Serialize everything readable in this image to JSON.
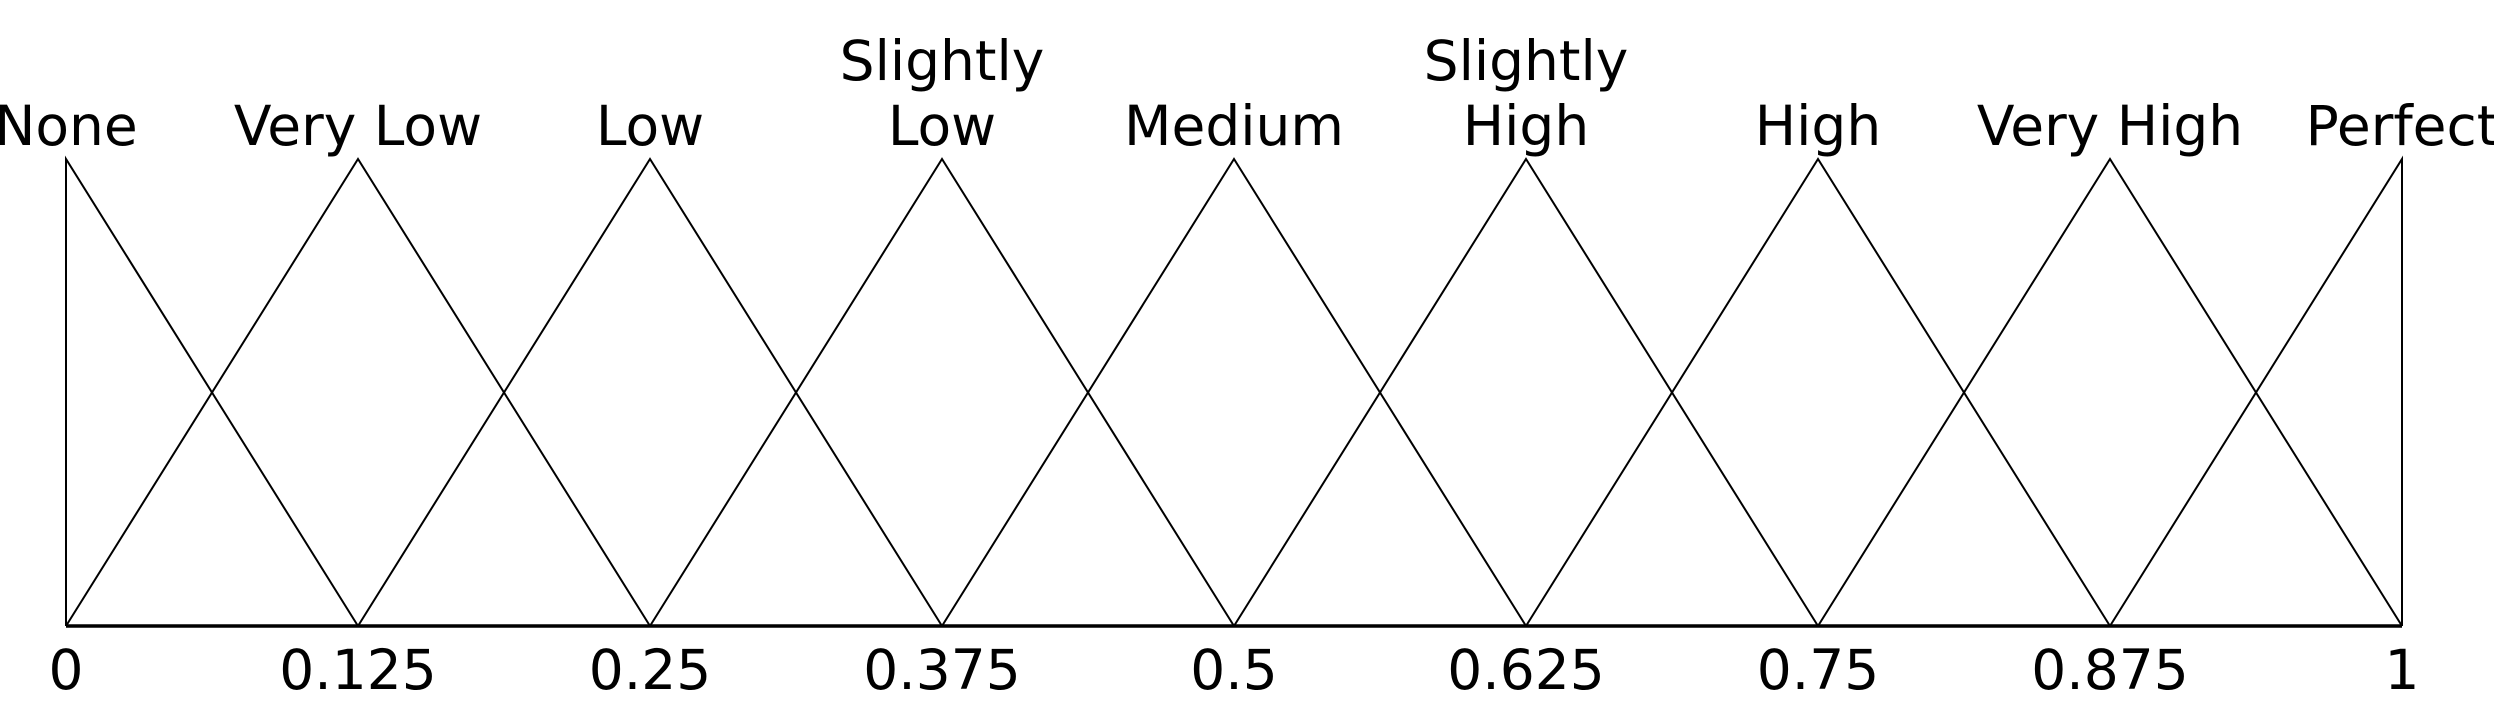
{
  "chart_data": {
    "type": "line",
    "title": "",
    "xlabel": "",
    "ylabel": "",
    "description": "Triangular fuzzy membership functions partitioning the interval [0,1]",
    "xlim": [
      0,
      1
    ],
    "ylim": [
      0,
      1
    ],
    "grid": false,
    "legend": "none",
    "x_tick_values": [
      0,
      0.125,
      0.25,
      0.375,
      0.5,
      0.625,
      0.75,
      0.875,
      1
    ],
    "x_tick_labels": [
      "0",
      "0.125",
      "0.25",
      "0.375",
      "0.5",
      "0.625",
      "0.75",
      "0.875",
      "1"
    ],
    "series": [
      {
        "name": "None",
        "label_lines": [
          "None"
        ],
        "left": 0,
        "peak": 0,
        "right": 0.125,
        "x": [
          0,
          0,
          0.125
        ],
        "y": [
          0,
          1,
          0
        ]
      },
      {
        "name": "Very Low",
        "label_lines": [
          "Very Low"
        ],
        "left": 0,
        "peak": 0.125,
        "right": 0.25,
        "x": [
          0,
          0.125,
          0.25
        ],
        "y": [
          0,
          1,
          0
        ]
      },
      {
        "name": "Low",
        "label_lines": [
          "Low"
        ],
        "left": 0.125,
        "peak": 0.25,
        "right": 0.375,
        "x": [
          0.125,
          0.25,
          0.375
        ],
        "y": [
          0,
          1,
          0
        ]
      },
      {
        "name": "Slightly Low",
        "label_lines": [
          "Slightly",
          "Low"
        ],
        "left": 0.25,
        "peak": 0.375,
        "right": 0.5,
        "x": [
          0.25,
          0.375,
          0.5
        ],
        "y": [
          0,
          1,
          0
        ]
      },
      {
        "name": "Medium",
        "label_lines": [
          "Medium"
        ],
        "left": 0.375,
        "peak": 0.5,
        "right": 0.625,
        "x": [
          0.375,
          0.5,
          0.625
        ],
        "y": [
          0,
          1,
          0
        ]
      },
      {
        "name": "Slightly High",
        "label_lines": [
          "Slightly",
          "High"
        ],
        "left": 0.5,
        "peak": 0.625,
        "right": 0.75,
        "x": [
          0.5,
          0.625,
          0.75
        ],
        "y": [
          0,
          1,
          0
        ]
      },
      {
        "name": "High",
        "label_lines": [
          "High"
        ],
        "left": 0.625,
        "peak": 0.75,
        "right": 0.875,
        "x": [
          0.625,
          0.75,
          0.875
        ],
        "y": [
          0,
          1,
          0
        ]
      },
      {
        "name": "Very High",
        "label_lines": [
          "Very High"
        ],
        "left": 0.75,
        "peak": 0.875,
        "right": 1,
        "x": [
          0.75,
          0.875,
          1
        ],
        "y": [
          0,
          1,
          0
        ]
      },
      {
        "name": "Perfect",
        "label_lines": [
          "Perfect"
        ],
        "left": 0.875,
        "peak": 1,
        "right": 1,
        "x": [
          0.875,
          1,
          1
        ],
        "y": [
          0,
          1,
          0
        ]
      }
    ],
    "colors": {
      "line": "#000000",
      "text": "#000000",
      "background": "#ffffff"
    }
  }
}
